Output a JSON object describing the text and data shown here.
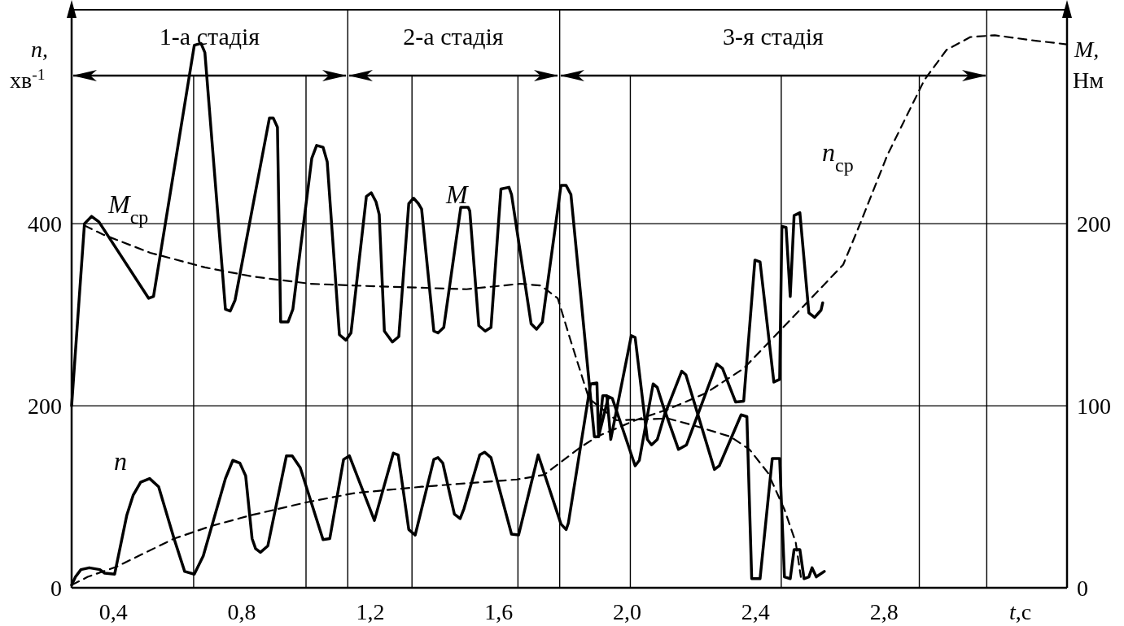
{
  "chart_data": {
    "type": "line",
    "xlabel": "t,с",
    "ylabel": "n, хв$^{-1}$",
    "y2label": "M, Нм",
    "xlim": [
      0.27,
      3.37
    ],
    "xticks": [
      {
        "value": 0.4,
        "label": "0,4"
      },
      {
        "value": 0.8,
        "label": "0,8"
      },
      {
        "value": 1.2,
        "label": "1,2"
      },
      {
        "value": 1.6,
        "label": "1,6"
      },
      {
        "value": 2.0,
        "label": "2,0"
      },
      {
        "value": 2.4,
        "label": "2,4"
      },
      {
        "value": 2.8,
        "label": "2,8"
      }
    ],
    "ylim": [
      0,
      635
    ],
    "yticks": [
      0,
      200,
      400
    ],
    "y2lim": [
      0,
      317.5
    ],
    "y2ticks": [
      0,
      100,
      200
    ],
    "grid": "y",
    "legend": false,
    "series": [
      {
        "name": "M",
        "color": "#000000",
        "axis": "y2",
        "line_style": "solid",
        "x": [
          0.27,
          0.31,
          0.332,
          0.355,
          0.51,
          0.525,
          0.652,
          0.673,
          0.685,
          0.749,
          0.764,
          0.779,
          0.886,
          0.898,
          0.911,
          0.921,
          0.944,
          0.959,
          1.018,
          1.033,
          1.053,
          1.066,
          1.104,
          1.124,
          1.14,
          1.188,
          1.203,
          1.218,
          1.228,
          1.244,
          1.269,
          1.289,
          1.32,
          1.335,
          1.35,
          1.36,
          1.398,
          1.411,
          1.429,
          1.482,
          1.505,
          1.51,
          1.538,
          1.558,
          1.576,
          1.607,
          1.632,
          1.64,
          1.701,
          1.718,
          1.736,
          1.794,
          1.81,
          1.825,
          1.898,
          1.911,
          1.942,
          1.954,
          2.025,
          2.038,
          2.081,
          2.094,
          2.119,
          2.17,
          2.183,
          2.272,
          2.287,
          2.355,
          2.373,
          2.388,
          2.414,
          2.452,
          2.475,
          2.49,
          2.508,
          2.52,
          2.538,
          2.551,
          2.566,
          2.576,
          2.589,
          2.614
        ],
        "values": [
          100,
          200,
          204,
          201,
          159,
          160,
          298,
          299,
          294,
          153,
          152,
          158,
          258,
          258,
          253,
          146,
          146,
          153,
          236,
          243,
          242,
          234,
          139,
          136,
          140,
          215,
          217,
          212,
          205,
          141,
          135,
          138,
          211,
          214,
          211,
          208,
          141,
          140,
          143,
          209,
          209,
          207,
          144,
          141,
          143,
          219,
          220,
          216,
          145,
          142,
          146,
          221,
          221,
          216,
          83,
          83,
          105,
          104,
          67,
          70,
          112,
          110,
          96,
          119,
          117,
          65,
          67,
          95,
          94,
          5,
          5,
          71,
          71,
          6,
          5,
          21,
          21,
          5,
          6,
          11,
          6,
          9
        ]
      },
      {
        "name": "n",
        "color": "#000000",
        "line_style": "solid",
        "x": [
          0.27,
          0.282,
          0.299,
          0.325,
          0.358,
          0.373,
          0.404,
          0.442,
          0.462,
          0.485,
          0.513,
          0.541,
          0.589,
          0.622,
          0.652,
          0.68,
          0.749,
          0.772,
          0.794,
          0.812,
          0.832,
          0.843,
          0.858,
          0.881,
          0.939,
          0.957,
          0.982,
          1.053,
          1.074,
          1.117,
          1.135,
          1.213,
          1.272,
          1.287,
          1.32,
          1.34,
          1.398,
          1.411,
          1.426,
          1.462,
          1.48,
          1.492,
          1.541,
          1.556,
          1.576,
          1.64,
          1.662,
          1.723,
          1.794,
          1.81,
          1.817,
          1.886,
          1.906,
          1.911,
          1.924,
          1.937,
          1.949,
          2.013,
          2.025,
          2.063,
          2.076,
          2.094,
          2.119,
          2.16,
          2.185,
          2.279,
          2.297,
          2.338,
          2.363,
          2.398,
          2.414,
          2.457,
          2.475,
          2.482,
          2.495,
          2.508,
          2.52,
          2.538,
          2.566,
          2.584,
          2.604,
          2.609
        ],
        "values": [
          3,
          12,
          20,
          22,
          20,
          16,
          15,
          80,
          102,
          116,
          120,
          111,
          54,
          18,
          15,
          35,
          120,
          140,
          137,
          123,
          54,
          43,
          39,
          46,
          145,
          145,
          132,
          53,
          54,
          141,
          145,
          74,
          148,
          146,
          64,
          58,
          141,
          143,
          137,
          81,
          76,
          87,
          146,
          149,
          143,
          59,
          58,
          146,
          70,
          64,
          71,
          224,
          225,
          166,
          211,
          211,
          163,
          277,
          275,
          163,
          157,
          163,
          193,
          152,
          157,
          246,
          241,
          204,
          205,
          360,
          358,
          226,
          229,
          397,
          396,
          320,
          409,
          412,
          302,
          297,
          305,
          313
        ]
      },
      {
        "name": "M$_{ср}$",
        "color": "#000000",
        "axis": "y2",
        "line_style": "dashed",
        "x": [
          0.31,
          0.368,
          0.515,
          0.685,
          0.832,
          1.013,
          1.15,
          1.5,
          1.668,
          1.731,
          1.784,
          1.822,
          1.881,
          1.967,
          2.127,
          2.211,
          2.322,
          2.381,
          2.439,
          2.49,
          2.525,
          2.541
        ],
        "values": [
          199,
          194,
          184,
          176,
          171,
          167,
          166,
          164,
          167,
          166,
          159,
          137,
          104,
          92,
          93,
          89,
          83,
          76,
          63,
          43,
          25,
          6
        ]
      },
      {
        "name": "n$_{ср}$",
        "color": "#000000",
        "line_style": "dashed",
        "x": [
          0.27,
          0.32,
          0.409,
          0.589,
          0.706,
          0.832,
          1.003,
          1.15,
          1.36,
          1.657,
          1.741,
          1.853,
          1.906,
          2.025,
          2.127,
          2.246,
          2.363,
          2.475,
          2.673,
          2.728,
          2.81,
          2.926,
          2.995,
          3.069,
          3.145,
          3.272,
          3.37
        ],
        "values": [
          3,
          12,
          23,
          54,
          68,
          80,
          94,
          104,
          111,
          119,
          124,
          154,
          166,
          184,
          196,
          214,
          241,
          282,
          355,
          402,
          475,
          558,
          591,
          605,
          607,
          601,
          597
        ]
      }
    ],
    "ref_lines": [
      {
        "axis": "x",
        "value": 0.65
      },
      {
        "axis": "x",
        "value": 1.0
      },
      {
        "axis": "x",
        "value": 1.13
      },
      {
        "axis": "x",
        "value": 1.33
      },
      {
        "axis": "x",
        "value": 1.66
      },
      {
        "axis": "x",
        "value": 1.79
      },
      {
        "axis": "x",
        "value": 2.01
      },
      {
        "axis": "x",
        "value": 2.48
      },
      {
        "axis": "x",
        "value": 2.91
      },
      {
        "axis": "x",
        "value": 3.12
      }
    ],
    "annotations": [
      "1-а стадія",
      "2-а стадія",
      "3-я стадія"
    ]
  }
}
